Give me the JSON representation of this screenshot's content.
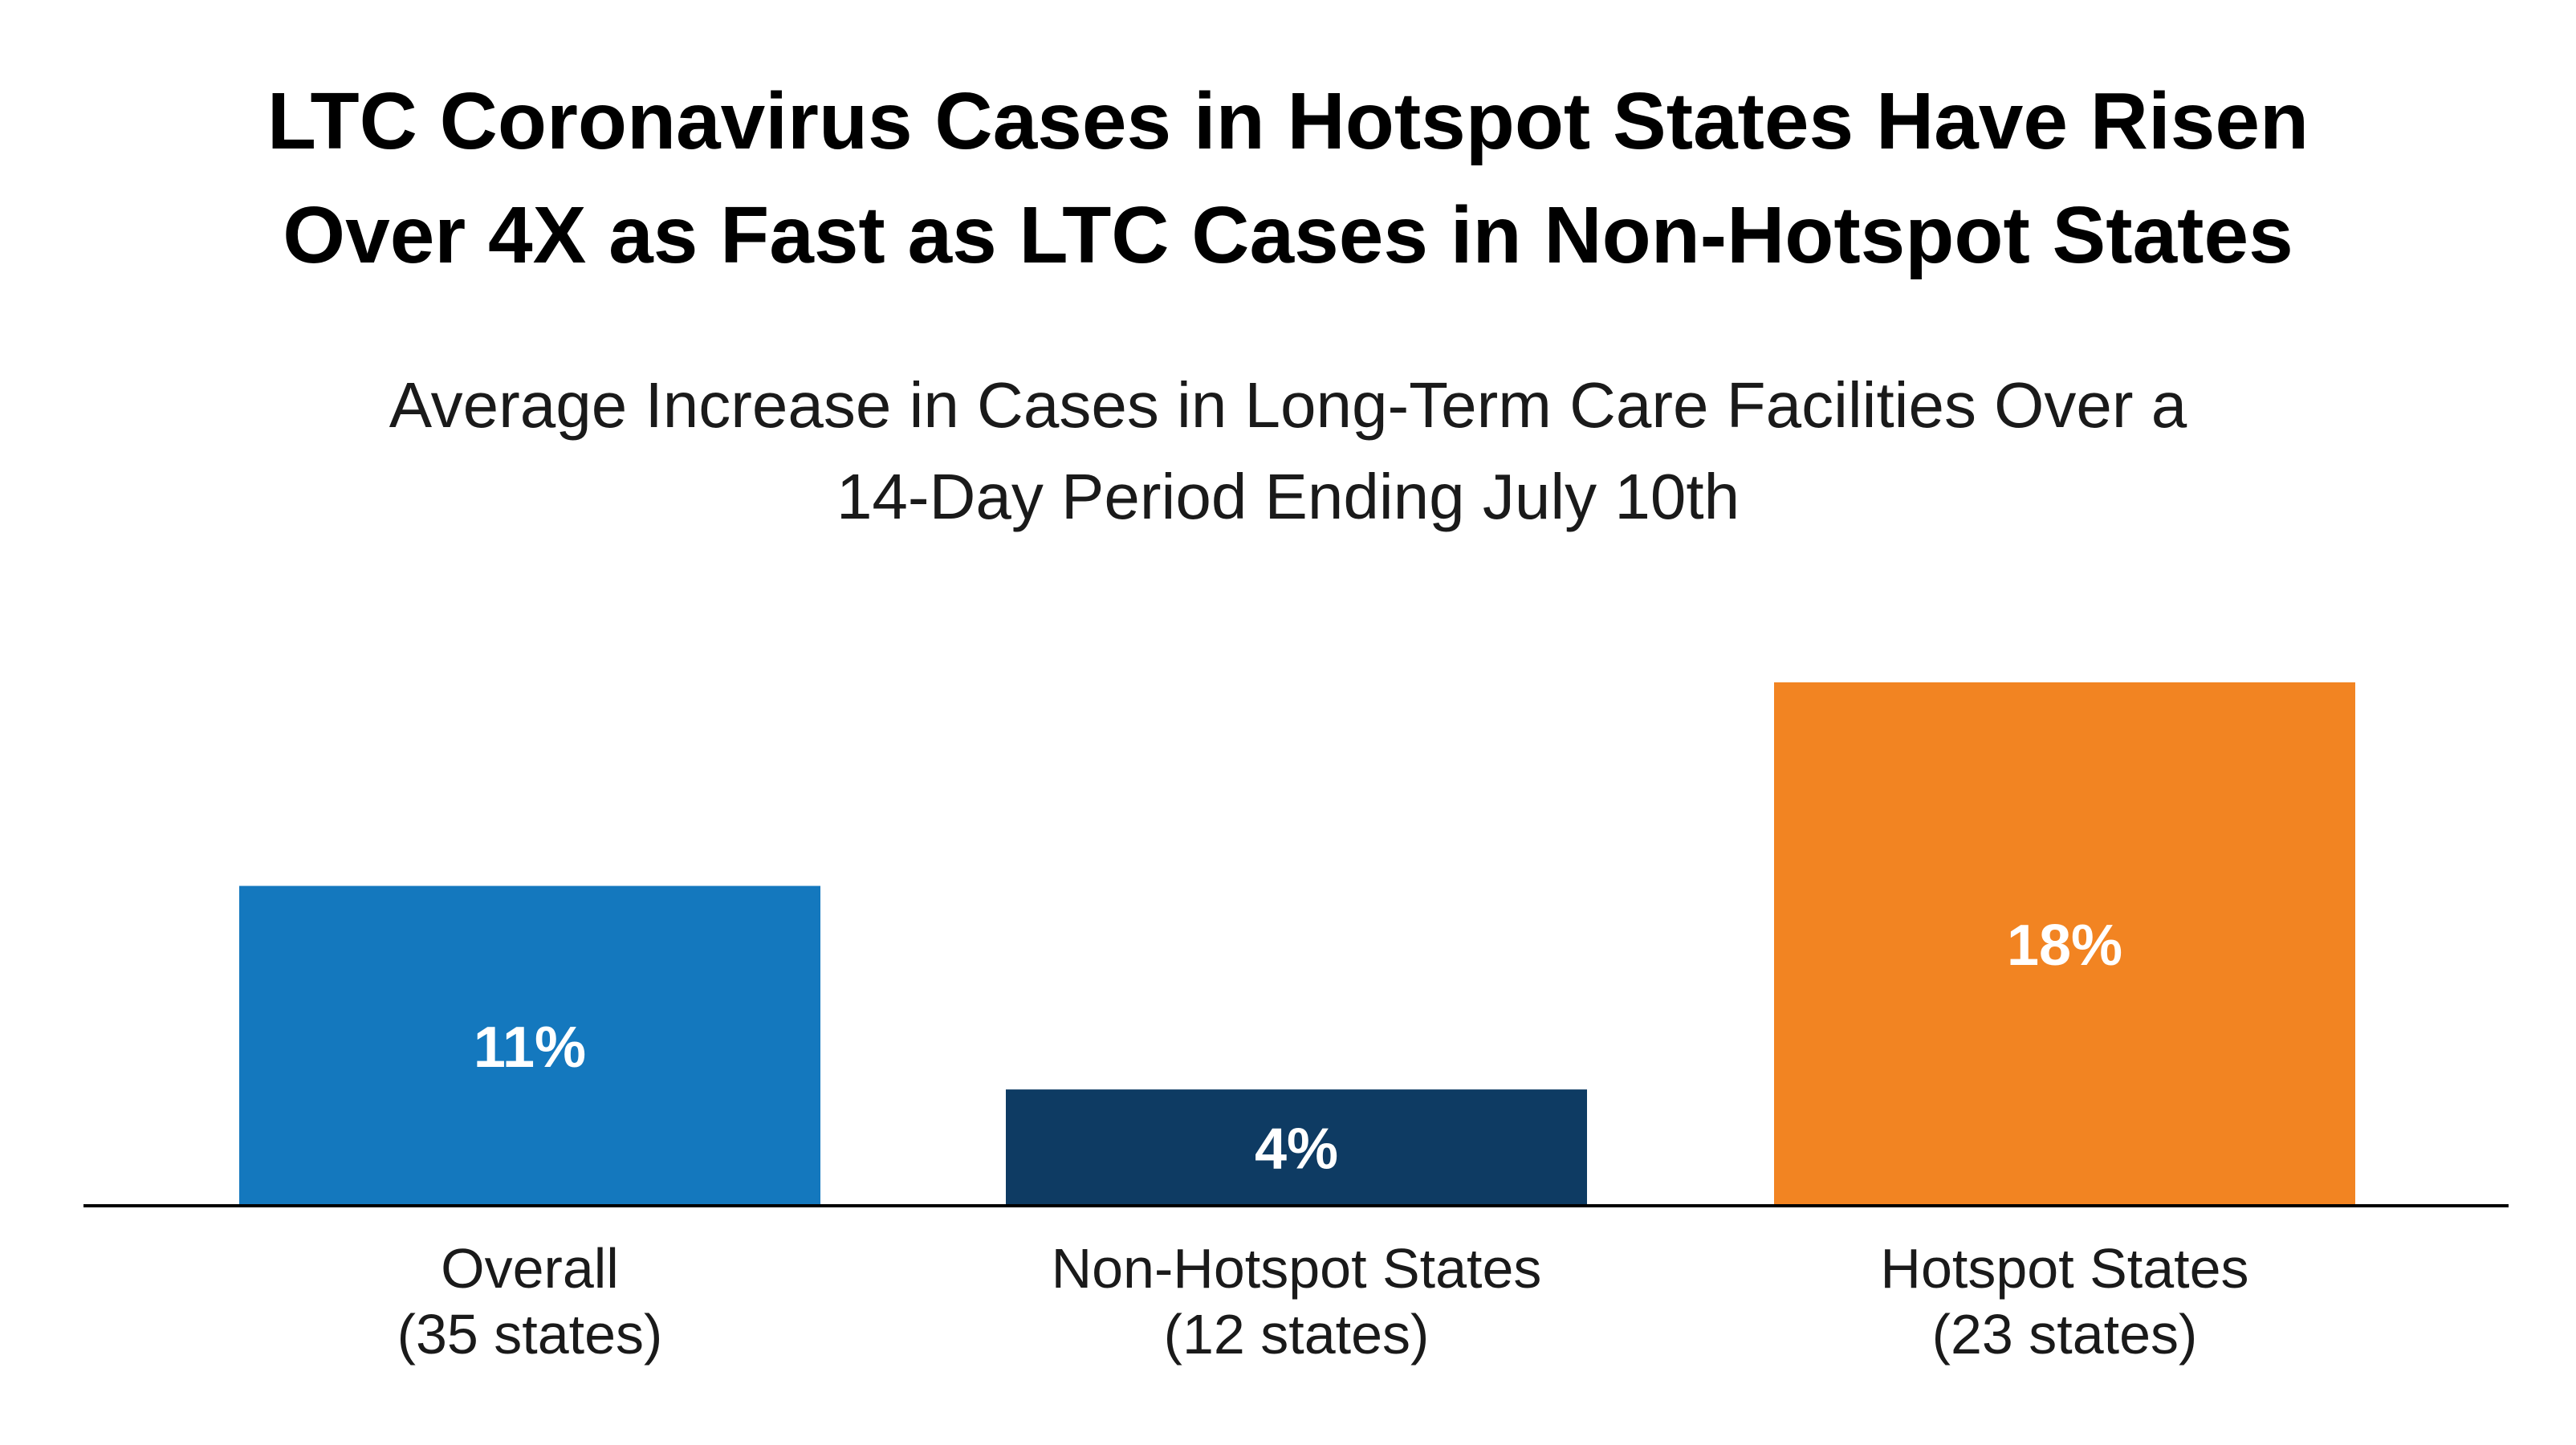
{
  "chart_data": {
    "type": "bar",
    "title_lines": [
      "LTC Coronavirus Cases in Hotspot States Have Risen",
      "Over 4X as Fast as LTC Cases in Non-Hotspot States"
    ],
    "subtitle_lines": [
      "Average Increase in Cases in Long-Term Care Facilities Over a",
      "14-Day Period Ending July 10th"
    ],
    "categories": [
      [
        "Overall",
        "(35 states)"
      ],
      [
        "Non-Hotspot States",
        "(12 states)"
      ],
      [
        "Hotspot States",
        "(23 states)"
      ]
    ],
    "values": [
      11,
      4,
      18
    ],
    "data_labels": [
      "11%",
      "4%",
      "18%"
    ],
    "colors": [
      "#1478BE",
      "#0E3B63",
      "#F28422"
    ],
    "ylim": [
      0,
      18
    ],
    "unit": "%",
    "xlabel": "",
    "ylabel": "",
    "grid": false,
    "legend": "none"
  }
}
